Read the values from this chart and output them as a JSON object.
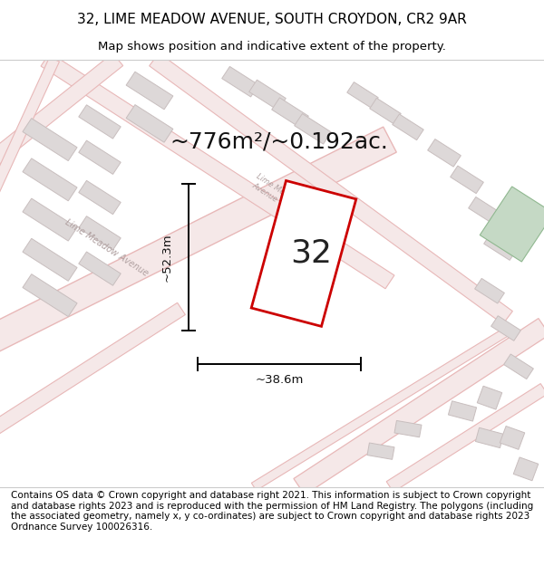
{
  "title": "32, LIME MEADOW AVENUE, SOUTH CROYDON, CR2 9AR",
  "subtitle": "Map shows position and indicative extent of the property.",
  "footer": "Contains OS data © Crown copyright and database right 2021. This information is subject to Crown copyright and database rights 2023 and is reproduced with the permission of HM Land Registry. The polygons (including the associated geometry, namely x, y co-ordinates) are subject to Crown copyright and database rights 2023 Ordnance Survey 100026316.",
  "area_label": "~776m²/~0.192ac.",
  "property_number": "32",
  "dim_width": "~38.6m",
  "dim_height": "~52.3m",
  "map_bg": "#f2eded",
  "road_color": "#e8b8b8",
  "road_fill": "#f5e8e8",
  "building_color": "#c8bebe",
  "building_fill": "#ddd8d8",
  "property_outline_color": "#cc0000",
  "green_patch_color": "#c5d9c5",
  "title_fontsize": 11,
  "subtitle_fontsize": 9.5,
  "footer_fontsize": 7.5,
  "road_label_color": "#b0a0a0",
  "dim_label_color": "#111111",
  "area_label_fontsize": 18,
  "property_label_fontsize": 26
}
